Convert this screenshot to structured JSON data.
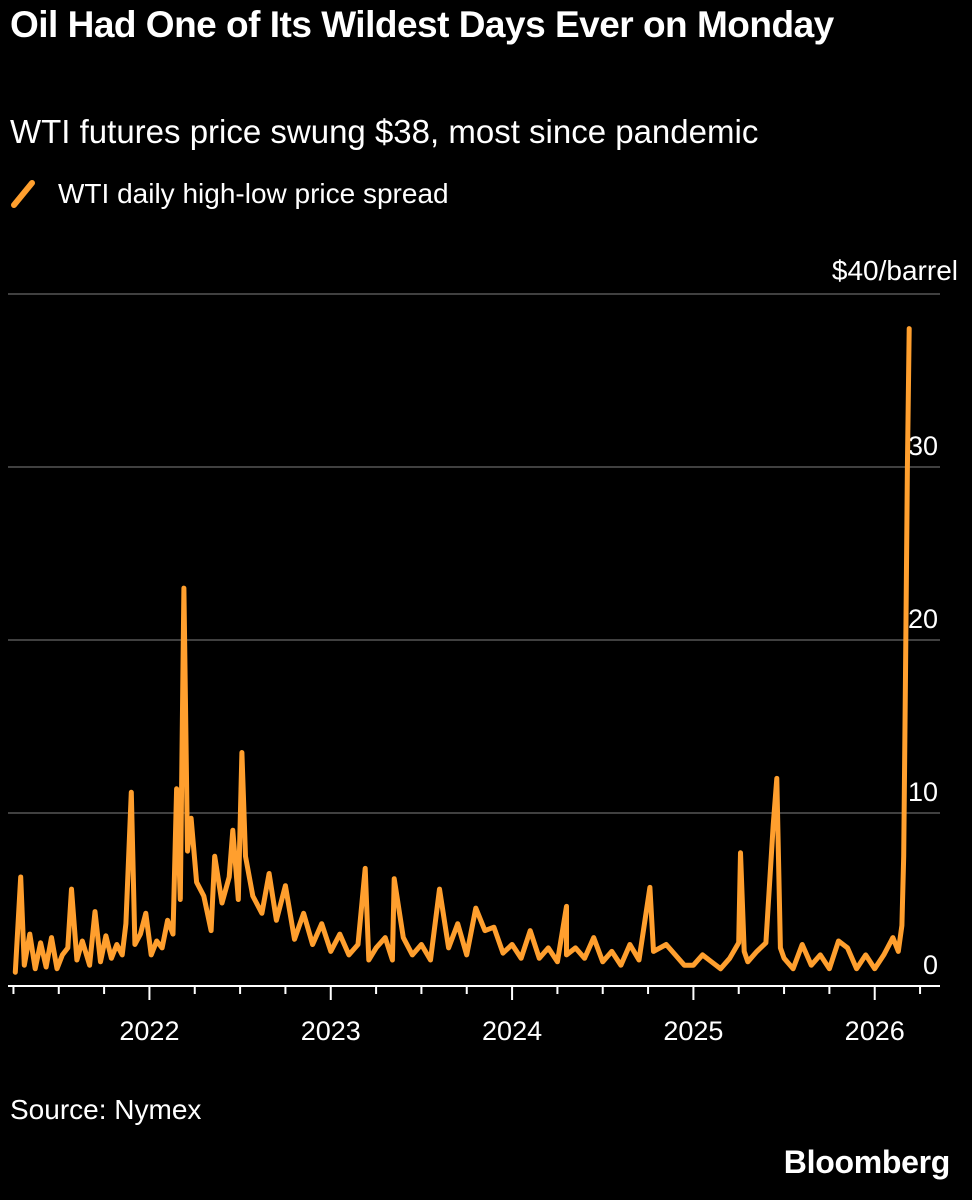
{
  "chart_data": {
    "type": "line",
    "title": "Oil Had One of Its Wildest Days Ever on Monday",
    "subtitle": "WTI futures price swung $38, most since pandemic",
    "legend": [
      "WTI daily high-low price spread"
    ],
    "unit_label": "$40/barrel",
    "ylim": [
      0,
      40
    ],
    "xlim": [
      2021.22,
      2026.36
    ],
    "y_ticks": [
      {
        "value": 0,
        "label": "0"
      },
      {
        "value": 10,
        "label": "10"
      },
      {
        "value": 20,
        "label": "20"
      },
      {
        "value": 30,
        "label": "30"
      },
      {
        "value": 40,
        "label": "$40/barrel"
      }
    ],
    "x_ticks": [
      {
        "value": 2022,
        "label": "2022"
      },
      {
        "value": 2023,
        "label": "2023"
      },
      {
        "value": 2024,
        "label": "2024"
      },
      {
        "value": 2025,
        "label": "2025"
      },
      {
        "value": 2026,
        "label": "2026"
      }
    ],
    "color": "#ff9f2e",
    "series": [
      {
        "name": "WTI daily high-low price spread",
        "x": [
          2021.26,
          2021.29,
          2021.31,
          2021.34,
          2021.37,
          2021.4,
          2021.43,
          2021.46,
          2021.49,
          2021.52,
          2021.55,
          2021.57,
          2021.6,
          2021.63,
          2021.67,
          2021.7,
          2021.73,
          2021.76,
          2021.79,
          2021.82,
          2021.85,
          2021.87,
          2021.9,
          2021.92,
          2021.95,
          2021.98,
          2022.01,
          2022.04,
          2022.07,
          2022.1,
          2022.13,
          2022.15,
          2022.17,
          2022.19,
          2022.21,
          2022.23,
          2022.26,
          2022.3,
          2022.34,
          2022.36,
          2022.4,
          2022.44,
          2022.46,
          2022.49,
          2022.51,
          2022.53,
          2022.57,
          2022.62,
          2022.66,
          2022.7,
          2022.75,
          2022.8,
          2022.85,
          2022.9,
          2022.95,
          2023.0,
          2023.05,
          2023.1,
          2023.15,
          2023.19,
          2023.21,
          2023.25,
          2023.3,
          2023.34,
          2023.35,
          2023.4,
          2023.45,
          2023.5,
          2023.55,
          2023.6,
          2023.65,
          2023.7,
          2023.75,
          2023.8,
          2023.85,
          2023.9,
          2023.95,
          2024.0,
          2024.05,
          2024.1,
          2024.15,
          2024.2,
          2024.25,
          2024.3,
          2024.3,
          2024.35,
          2024.4,
          2024.45,
          2024.5,
          2024.55,
          2024.6,
          2024.65,
          2024.7,
          2024.76,
          2024.78,
          2024.85,
          2024.9,
          2024.95,
          2025.0,
          2025.05,
          2025.1,
          2025.15,
          2025.2,
          2025.25,
          2025.26,
          2025.28,
          2025.3,
          2025.35,
          2025.4,
          2025.44,
          2025.46,
          2025.48,
          2025.5,
          2025.55,
          2025.6,
          2025.65,
          2025.7,
          2025.75,
          2025.8,
          2025.85,
          2025.9,
          2025.95,
          2026.0,
          2026.05,
          2026.1,
          2026.13,
          2026.15,
          2026.16,
          2026.17,
          2026.18,
          2026.19
        ],
        "values": [
          0.8,
          6.3,
          1.2,
          3.0,
          1.0,
          2.5,
          1.1,
          2.8,
          1.0,
          1.8,
          2.2,
          5.6,
          1.5,
          2.6,
          1.2,
          4.3,
          1.4,
          2.9,
          1.6,
          2.4,
          1.8,
          3.6,
          11.2,
          2.4,
          3.0,
          4.2,
          1.8,
          2.6,
          2.2,
          3.8,
          3.0,
          11.4,
          5.0,
          23.0,
          7.8,
          9.7,
          6.0,
          5.2,
          3.2,
          7.5,
          4.8,
          6.3,
          9.0,
          5.0,
          13.5,
          7.5,
          5.2,
          4.2,
          6.5,
          3.8,
          5.8,
          2.7,
          4.2,
          2.4,
          3.6,
          2.0,
          3.0,
          1.8,
          2.4,
          6.8,
          1.5,
          2.2,
          2.8,
          1.5,
          6.2,
          2.8,
          1.8,
          2.4,
          1.5,
          5.6,
          2.2,
          3.6,
          1.8,
          4.5,
          3.2,
          3.4,
          1.9,
          2.4,
          1.6,
          3.2,
          1.6,
          2.2,
          1.4,
          4.6,
          1.8,
          2.2,
          1.6,
          2.8,
          1.4,
          2.0,
          1.2,
          2.4,
          1.5,
          5.7,
          2.0,
          2.4,
          1.8,
          1.2,
          1.2,
          1.8,
          1.4,
          1.0,
          1.6,
          2.5,
          7.7,
          2.0,
          1.4,
          2.0,
          2.5,
          9.3,
          12.0,
          2.2,
          1.6,
          1.0,
          2.4,
          1.2,
          1.8,
          1.0,
          2.6,
          2.2,
          1.0,
          1.8,
          1.0,
          1.8,
          2.8,
          2.0,
          3.5,
          7.5,
          18.0,
          30.0,
          38.0
        ]
      }
    ]
  },
  "source": "Source: Nymex",
  "brand": "Bloomberg"
}
